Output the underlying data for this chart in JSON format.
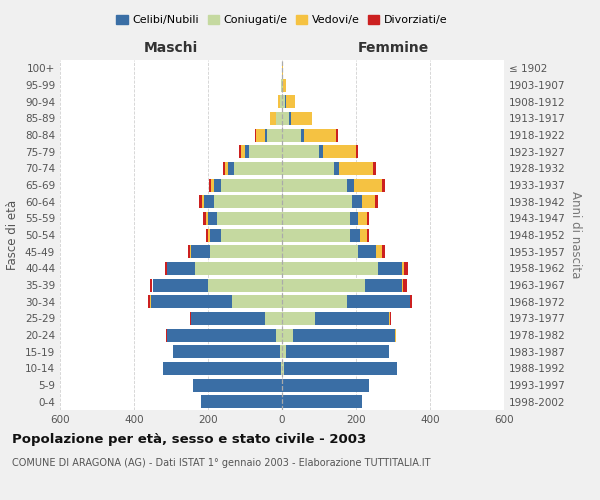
{
  "age_groups": [
    "0-4",
    "5-9",
    "10-14",
    "15-19",
    "20-24",
    "25-29",
    "30-34",
    "35-39",
    "40-44",
    "45-49",
    "50-54",
    "55-59",
    "60-64",
    "65-69",
    "70-74",
    "75-79",
    "80-84",
    "85-89",
    "90-94",
    "95-99",
    "100+"
  ],
  "birth_years": [
    "1998-2002",
    "1993-1997",
    "1988-1992",
    "1983-1987",
    "1978-1982",
    "1973-1977",
    "1968-1972",
    "1963-1967",
    "1958-1962",
    "1953-1957",
    "1948-1952",
    "1943-1947",
    "1938-1942",
    "1933-1937",
    "1928-1932",
    "1923-1927",
    "1918-1922",
    "1913-1917",
    "1908-1912",
    "1903-1907",
    "≤ 1902"
  ],
  "male_celibe": [
    220,
    240,
    320,
    290,
    295,
    200,
    220,
    150,
    75,
    50,
    30,
    25,
    25,
    20,
    15,
    10,
    5,
    2,
    0,
    0,
    0
  ],
  "male_coniugato": [
    0,
    0,
    2,
    5,
    15,
    45,
    135,
    200,
    235,
    195,
    165,
    175,
    185,
    165,
    130,
    90,
    40,
    15,
    5,
    2,
    0
  ],
  "male_vedovo": [
    0,
    0,
    0,
    0,
    2,
    2,
    2,
    2,
    2,
    3,
    5,
    5,
    5,
    8,
    10,
    10,
    25,
    15,
    5,
    2,
    0
  ],
  "male_divorziato": [
    0,
    0,
    0,
    0,
    2,
    2,
    5,
    5,
    5,
    5,
    5,
    8,
    8,
    5,
    5,
    5,
    2,
    0,
    0,
    0,
    0
  ],
  "female_celibe": [
    215,
    235,
    305,
    280,
    275,
    200,
    170,
    100,
    65,
    50,
    25,
    20,
    25,
    20,
    15,
    10,
    10,
    5,
    2,
    0,
    0
  ],
  "female_coniugata": [
    0,
    0,
    5,
    10,
    30,
    90,
    175,
    225,
    260,
    205,
    185,
    185,
    190,
    175,
    140,
    100,
    50,
    20,
    8,
    2,
    0
  ],
  "female_vedova": [
    0,
    0,
    0,
    0,
    2,
    2,
    2,
    2,
    5,
    15,
    20,
    25,
    35,
    75,
    90,
    90,
    85,
    55,
    25,
    8,
    2
  ],
  "female_divorziata": [
    0,
    0,
    0,
    0,
    2,
    2,
    5,
    10,
    10,
    8,
    5,
    5,
    10,
    8,
    8,
    5,
    5,
    2,
    0,
    0,
    0
  ],
  "color_celibe": "#3a6ea5",
  "color_coniugato": "#c5d9a0",
  "color_vedovo": "#f5c242",
  "color_divorziato": "#cc2020",
  "xlim": 600,
  "title": "Popolazione per età, sesso e stato civile - 2003",
  "subtitle": "COMUNE DI ARAGONA (AG) - Dati ISTAT 1° gennaio 2003 - Elaborazione TUTTITALIA.IT",
  "ylabel_left": "Fasce di età",
  "ylabel_right": "Anni di nascita",
  "xlabel_maschi": "Maschi",
  "xlabel_femmine": "Femmine",
  "bg_color": "#f0f0f0",
  "plot_bg_color": "#ffffff",
  "grid_color": "#cccccc"
}
